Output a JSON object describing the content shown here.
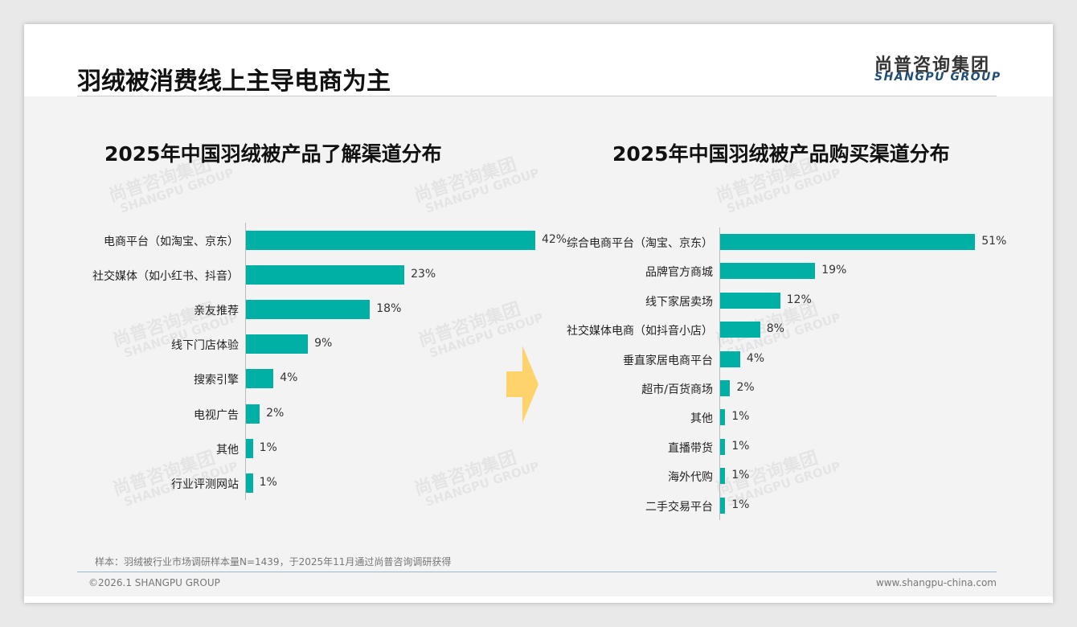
{
  "header": {
    "title": "羽绒被消费线上主导电商为主",
    "logo_cn": "尚普咨询集团",
    "logo_en": "SHANGPU GROUP"
  },
  "watermark": {
    "cn": "尚普咨询集团",
    "en": "SHANGPU GROUP"
  },
  "chart_data": [
    {
      "type": "bar",
      "orientation": "horizontal",
      "title": "2025年中国羽绒被产品了解渠道分布",
      "unit": "%",
      "categories": [
        "电商平台（如淘宝、京东）",
        "社交媒体（如小红书、抖音）",
        "亲友推荐",
        "线下门店体验",
        "搜索引擎",
        "电视广告",
        "其他",
        "行业评测网站"
      ],
      "values": [
        42,
        23,
        18,
        9,
        4,
        2,
        1,
        1
      ],
      "labels": [
        "42%",
        "23%",
        "18%",
        "9%",
        "4%",
        "2%",
        "1%",
        "1%"
      ],
      "color": "#00b0a4"
    },
    {
      "type": "bar",
      "orientation": "horizontal",
      "title": "2025年中国羽绒被产品购买渠道分布",
      "unit": "%",
      "categories": [
        "综合电商平台（淘宝、京东）",
        "品牌官方商城",
        "线下家居卖场",
        "社交媒体电商（如抖音小店）",
        "垂直家居电商平台",
        "超市/百货商场",
        "其他",
        "直播带货",
        "海外代购",
        "二手交易平台"
      ],
      "values": [
        51,
        19,
        12,
        8,
        4,
        2,
        1,
        1,
        1,
        1
      ],
      "labels": [
        "51%",
        "19%",
        "12%",
        "8%",
        "4%",
        "2%",
        "1%",
        "1%",
        "1%",
        "1%"
      ],
      "color": "#00b0a4"
    }
  ],
  "footer": {
    "note": "样本：羽绒被行业市场调研样本量N=1439，于2025年11月通过尚普咨询调研获得",
    "copyright": "©2026.1 SHANGPU GROUP",
    "url": "www.shangpu-china.com"
  }
}
